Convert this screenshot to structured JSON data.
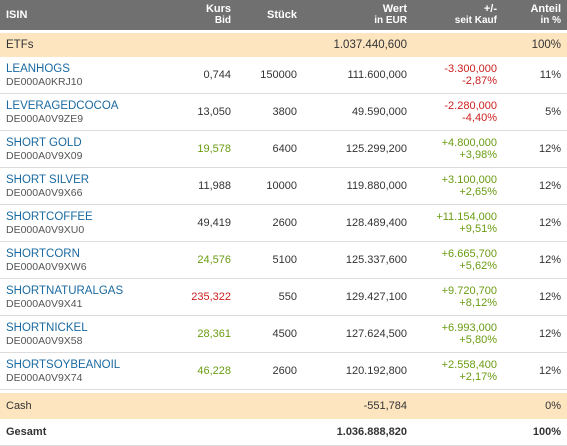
{
  "header": {
    "isin": "ISIN",
    "kurs": "Kurs",
    "kurs_sub": "Bid",
    "stueck": "Stück",
    "wert": "Wert",
    "wert_sub": "in EUR",
    "plusminus": "+/-",
    "plusminus_sub": "seit Kauf",
    "anteil": "Anteil",
    "anteil_sub": "in %"
  },
  "etfs": {
    "label": "ETFs",
    "wert": "1.037.440,600",
    "anteil": "100%"
  },
  "rows": [
    {
      "name": "LEANHOGS",
      "isin": "DE000A0KRJ10",
      "kurs": "0,744",
      "kurs_color": "neutral",
      "stueck": "150000",
      "wert": "111.600,000",
      "chg_abs": "-3.300,000",
      "chg_pct": "-2,87%",
      "chg_color": "neg",
      "anteil": "11%"
    },
    {
      "name": "LEVERAGEDCOCOA",
      "isin": "DE000A0V9ZE9",
      "kurs": "13,050",
      "kurs_color": "neutral",
      "stueck": "3800",
      "wert": "49.590,000",
      "chg_abs": "-2.280,000",
      "chg_pct": "-4,40%",
      "chg_color": "neg",
      "anteil": "5%"
    },
    {
      "name": "SHORT GOLD",
      "isin": "DE000A0V9X09",
      "kurs": "19,578",
      "kurs_color": "pos",
      "stueck": "6400",
      "wert": "125.299,200",
      "chg_abs": "+4.800,000",
      "chg_pct": "+3,98%",
      "chg_color": "pos",
      "anteil": "12%"
    },
    {
      "name": "SHORT SILVER",
      "isin": "DE000A0V9X66",
      "kurs": "11,988",
      "kurs_color": "neutral",
      "stueck": "10000",
      "wert": "119.880,000",
      "chg_abs": "+3.100,000",
      "chg_pct": "+2,65%",
      "chg_color": "pos",
      "anteil": "12%"
    },
    {
      "name": "SHORTCOFFEE",
      "isin": "DE000A0V9XU0",
      "kurs": "49,419",
      "kurs_color": "neutral",
      "stueck": "2600",
      "wert": "128.489,400",
      "chg_abs": "+11.154,000",
      "chg_pct": "+9,51%",
      "chg_color": "pos",
      "anteil": "12%"
    },
    {
      "name": "SHORTCORN",
      "isin": "DE000A0V9XW6",
      "kurs": "24,576",
      "kurs_color": "pos",
      "stueck": "5100",
      "wert": "125.337,600",
      "chg_abs": "+6.665,700",
      "chg_pct": "+5,62%",
      "chg_color": "pos",
      "anteil": "12%"
    },
    {
      "name": "SHORTNATURALGAS",
      "isin": "DE000A0V9X41",
      "kurs": "235,322",
      "kurs_color": "neg",
      "stueck": "550",
      "wert": "129.427,100",
      "chg_abs": "+9.720,700",
      "chg_pct": "+8,12%",
      "chg_color": "pos",
      "anteil": "12%"
    },
    {
      "name": "SHORTNICKEL",
      "isin": "DE000A0V9X58",
      "kurs": "28,361",
      "kurs_color": "pos",
      "stueck": "4500",
      "wert": "127.624,500",
      "chg_abs": "+6.993,000",
      "chg_pct": "+5,80%",
      "chg_color": "pos",
      "anteil": "12%"
    },
    {
      "name": "SHORTSOYBEANOIL",
      "isin": "DE000A0V9X74",
      "kurs": "46,228",
      "kurs_color": "pos",
      "stueck": "2600",
      "wert": "120.192,800",
      "chg_abs": "+2.558,400",
      "chg_pct": "+2,17%",
      "chg_color": "pos",
      "anteil": "12%"
    }
  ],
  "cash": {
    "label": "Cash",
    "wert": "-551,784",
    "anteil": "0%"
  },
  "gesamt": {
    "label": "Gesamt",
    "wert": "1.036.888,820",
    "anteil": "100%"
  },
  "colors": {
    "header_bg": "#707070",
    "section_bg": "#fde5c0",
    "link": "#1a6aa1",
    "negative": "#cc2020",
    "positive": "#6a9c12"
  }
}
